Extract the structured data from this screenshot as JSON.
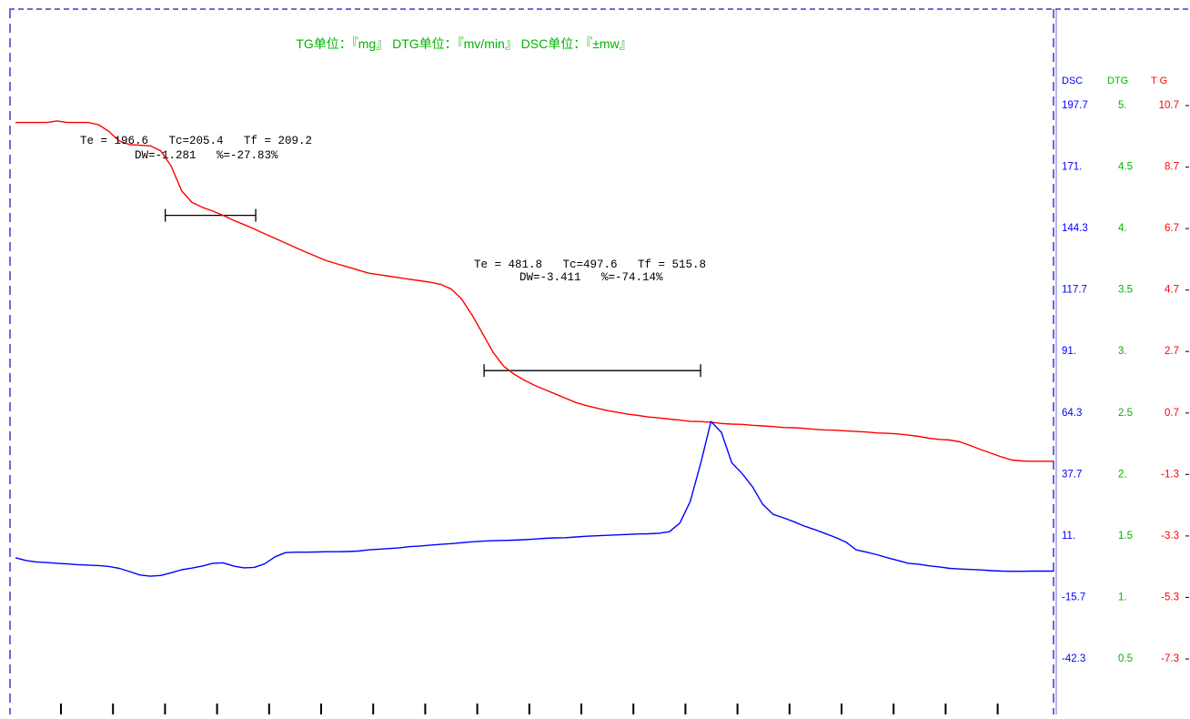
{
  "header": {
    "units_text": "TG单位：『mg』   DTG单位：『mv/min』   DSC单位：『±mw』"
  },
  "colors": {
    "tg": "#ff0000",
    "dtg": "#00b400",
    "dsc": "#0000ff",
    "frame": "#6b6bd8",
    "annotation": "#000000"
  },
  "chart_data": {
    "type": "line",
    "x": [
      0,
      7,
      14,
      21,
      28,
      35,
      42,
      49,
      56,
      63,
      70,
      77,
      84,
      91,
      98,
      105,
      112,
      119,
      126,
      133,
      140,
      147,
      154,
      161,
      168,
      175,
      182,
      189,
      196,
      203,
      210,
      217,
      224,
      231,
      238,
      245,
      252,
      259,
      266,
      273,
      280,
      287,
      294,
      301,
      308,
      315,
      322,
      329,
      336,
      343,
      350,
      357,
      364,
      371,
      378,
      385,
      392,
      399,
      406,
      413,
      420,
      427,
      434,
      441,
      448,
      455,
      462,
      469,
      476,
      483,
      490,
      497,
      504,
      511,
      518,
      525,
      532,
      539,
      546,
      553,
      560,
      567,
      574,
      581,
      588,
      595,
      602,
      609,
      616,
      623,
      630,
      637,
      644,
      651,
      658,
      665,
      672,
      679,
      686,
      693,
      700
    ],
    "series": [
      {
        "name": "TG",
        "axis": "TG",
        "values": [
          10.12,
          10.12,
          10.12,
          10.12,
          10.17,
          10.12,
          10.12,
          10.12,
          10.05,
          9.83,
          9.52,
          9.4,
          9.38,
          9.36,
          9.2,
          8.7,
          7.9,
          7.52,
          7.36,
          7.24,
          7.1,
          6.94,
          6.8,
          6.66,
          6.5,
          6.35,
          6.2,
          6.05,
          5.9,
          5.76,
          5.62,
          5.52,
          5.42,
          5.32,
          5.22,
          5.17,
          5.12,
          5.07,
          5.02,
          4.97,
          4.92,
          4.85,
          4.7,
          4.37,
          3.85,
          3.25,
          2.65,
          2.2,
          1.94,
          1.74,
          1.57,
          1.43,
          1.29,
          1.15,
          1.01,
          0.91,
          0.83,
          0.75,
          0.69,
          0.63,
          0.59,
          0.54,
          0.51,
          0.47,
          0.44,
          0.4,
          0.39,
          0.37,
          0.33,
          0.31,
          0.3,
          0.27,
          0.25,
          0.23,
          0.2,
          0.19,
          0.17,
          0.14,
          0.12,
          0.11,
          0.09,
          0.07,
          0.05,
          0.02,
          0.01,
          -0.01,
          -0.05,
          -0.09,
          -0.15,
          -0.19,
          -0.21,
          -0.27,
          -0.39,
          -0.52,
          -0.64,
          -0.76,
          -0.86,
          -0.89,
          -0.9,
          -0.9,
          -0.9
        ]
      },
      {
        "name": "DSC",
        "axis": "DSC",
        "values": [
          1.2,
          0.0,
          -0.6,
          -0.9,
          -1.2,
          -1.5,
          -1.8,
          -2.0,
          -2.2,
          -2.6,
          -3.4,
          -4.8,
          -6.3,
          -6.8,
          -6.5,
          -5.3,
          -4.0,
          -3.3,
          -2.4,
          -1.2,
          -1.0,
          -2.4,
          -3.2,
          -3.0,
          -1.5,
          1.6,
          3.4,
          3.6,
          3.6,
          3.7,
          3.8,
          3.8,
          3.9,
          4.1,
          4.6,
          4.9,
          5.2,
          5.5,
          6.0,
          6.3,
          6.7,
          7.0,
          7.3,
          7.7,
          8.1,
          8.4,
          8.6,
          8.7,
          8.8,
          9.0,
          9.3,
          9.6,
          9.8,
          9.9,
          10.2,
          10.5,
          10.7,
          10.9,
          11.1,
          11.3,
          11.5,
          11.6,
          11.8,
          12.5,
          16.2,
          25.5,
          42.0,
          60.3,
          55.6,
          42.4,
          37.7,
          32.0,
          24.3,
          20.0,
          18.5,
          16.8,
          14.9,
          13.4,
          11.7,
          10.0,
          8.0,
          4.6,
          3.6,
          2.5,
          1.2,
          0.0,
          -1.2,
          -1.6,
          -2.3,
          -2.8,
          -3.4,
          -3.7,
          -3.9,
          -4.1,
          -4.4,
          -4.6,
          -4.7,
          -4.7,
          -4.6,
          -4.6,
          -4.6
        ]
      }
    ],
    "annotations": [
      {
        "line1": "Te = 196.6   Tc=205.4   Tf = 209.2",
        "line2": "DW=-1.281   %=-27.83%",
        "bracket_x": [
          101,
          162
        ],
        "bracket_level": 7.1
      },
      {
        "line1": "Te = 481.8   Tc=497.6   Tf = 515.8",
        "line2": "DW=-3.411   %=-74.14%",
        "bracket_x": [
          316,
          462
        ],
        "bracket_level": 2.05
      }
    ],
    "axes": {
      "headers": {
        "DSC": "DSC",
        "DTG": "DTG",
        "TG": "T G"
      },
      "DSC": {
        "ticks": [
          "197.7",
          "171.",
          "144.3",
          "117.7",
          "91.",
          "64.3",
          "37.7",
          "11.",
          "-15.7",
          "-42.3"
        ],
        "range": [
          -42.3,
          197.7
        ]
      },
      "DTG": {
        "ticks": [
          "5.",
          "4.5",
          "4.",
          "3.5",
          "3.",
          "2.5",
          "2.",
          "1.5",
          "1.",
          "0.5"
        ],
        "range": [
          0.5,
          5.0
        ]
      },
      "TG": {
        "ticks": [
          "10.7",
          "8.7",
          "6.7",
          "4.7",
          "2.7",
          "0.7",
          "-1.3",
          "-3.3",
          "-5.3",
          "-7.3"
        ],
        "range": [
          -7.3,
          10.7
        ]
      }
    },
    "xlim": [
      0,
      700
    ],
    "x_tick_count": 19,
    "xlabel": "",
    "title": ""
  }
}
